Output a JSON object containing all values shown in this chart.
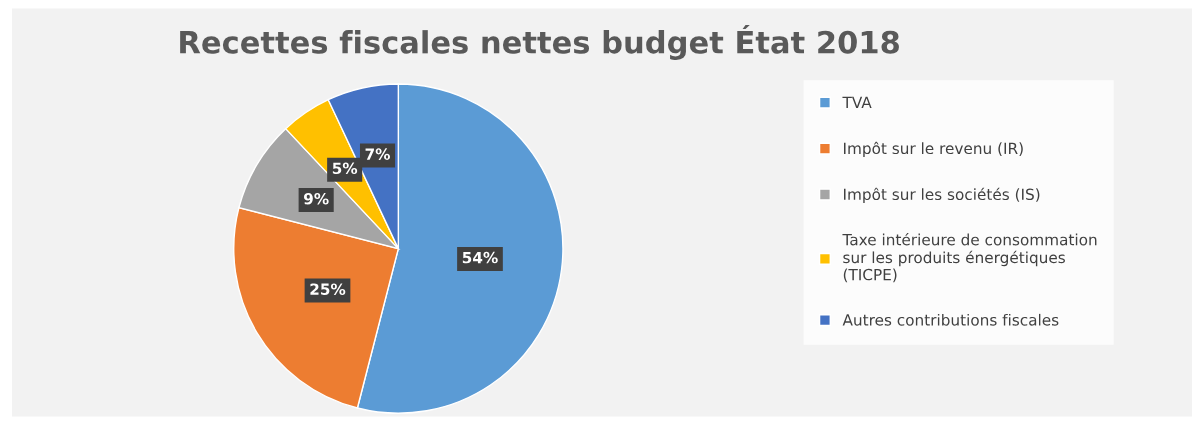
{
  "chart_data": {
    "type": "pie",
    "title": "Recettes fiscales nettes budget État 2018",
    "categories": [
      "TVA",
      "Impôt sur le revenu (IR)",
      "Impôt sur les sociétés (IS)",
      "Taxe intérieure de consommation\nsur les produits énergétiques\n(TICPE)",
      "Autres contributions fiscales"
    ],
    "values": [
      54,
      25,
      9,
      5,
      7
    ],
    "colors": [
      "#5b9bd5",
      "#ed7d31",
      "#a5a5a5",
      "#ffc000",
      "#4472c4"
    ],
    "value_labels": [
      "54%",
      "25%",
      "9%",
      "5%",
      "7%"
    ],
    "legend": "right"
  }
}
